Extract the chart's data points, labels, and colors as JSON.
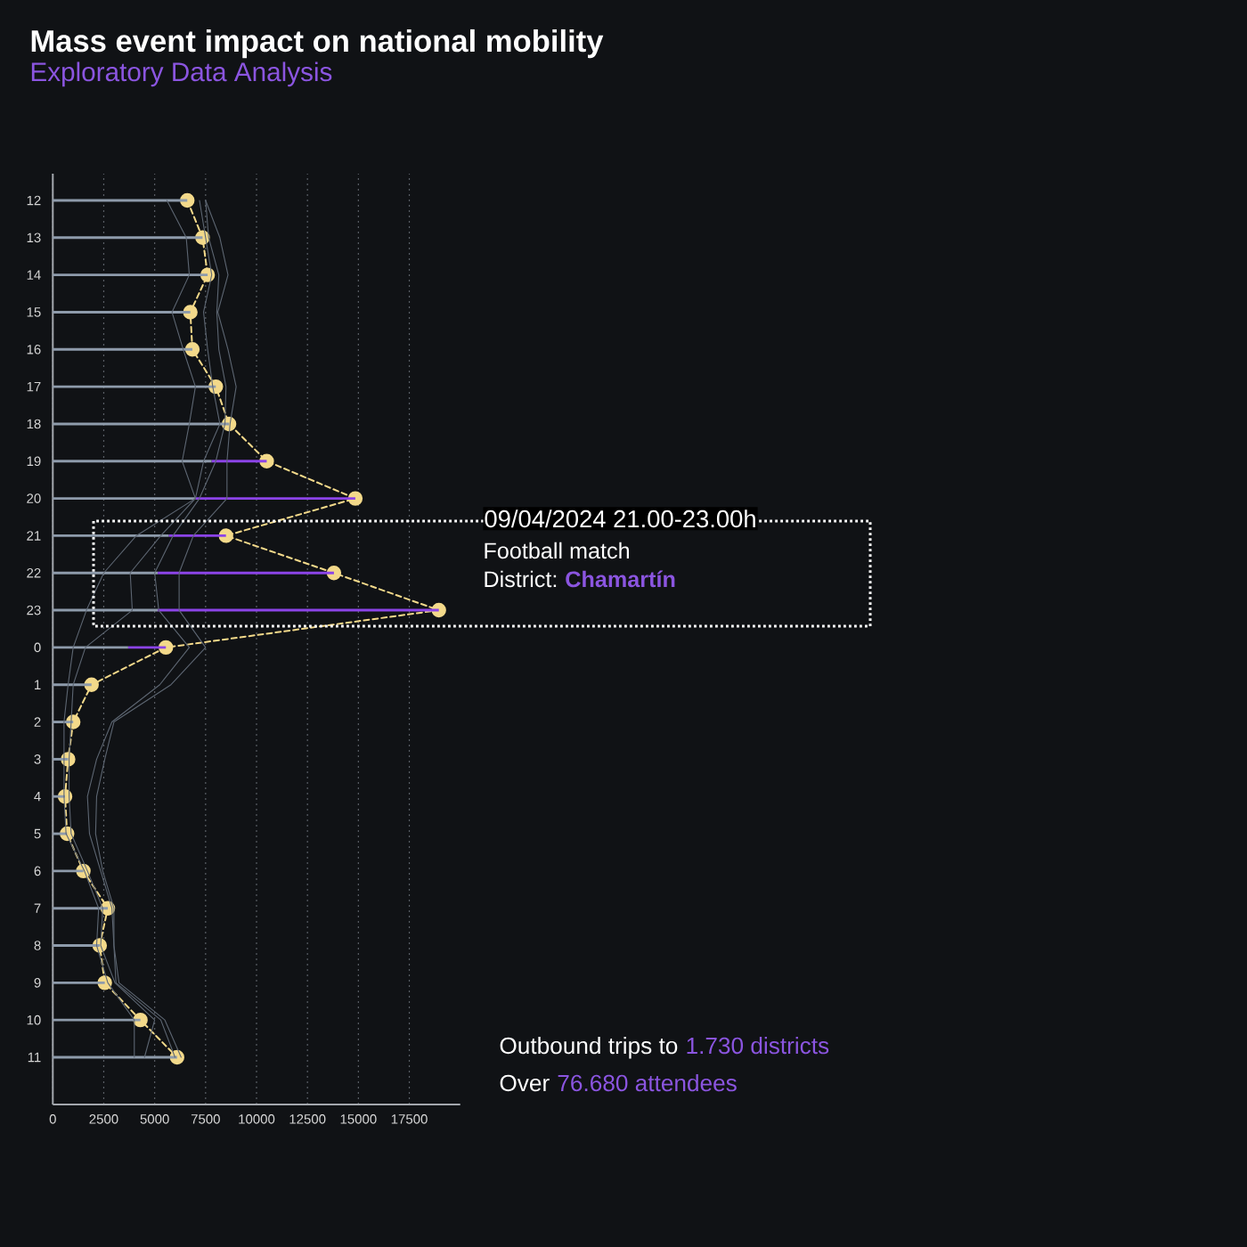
{
  "chart_data": {
    "type": "bar",
    "orientation": "horizontal",
    "stacked": true,
    "title": "Mass event impact on national mobility",
    "subtitle": "Exploratory Data Analysis",
    "categories": [
      "12",
      "13",
      "14",
      "15",
      "16",
      "17",
      "18",
      "19",
      "20",
      "21",
      "22",
      "23",
      "0",
      "1",
      "2",
      "3",
      "4",
      "5",
      "6",
      "7",
      "8",
      "9",
      "10",
      "11"
    ],
    "series": [
      {
        "color": "#8e9bab",
        "values": [
          6600,
          7350,
          7600,
          6750,
          6850,
          8000,
          8650,
          7800,
          7000,
          5700,
          5150,
          5150,
          3700,
          1900,
          1000,
          750,
          600,
          700,
          1500,
          2700,
          2300,
          2550,
          4300,
          6100
        ]
      },
      {
        "color": "#8c44e8",
        "values": [
          null,
          null,
          null,
          null,
          null,
          null,
          null,
          2700,
          7850,
          2800,
          8650,
          13800,
          1850,
          null,
          null,
          null,
          null,
          null,
          null,
          null,
          null,
          null,
          null,
          null
        ]
      },
      {
        "type": "line",
        "color": "#5d6672",
        "values": [
          5600,
          6550,
          6700,
          5850,
          6400,
          7000,
          6700,
          6350,
          7000,
          4100,
          2500,
          1650,
          1000,
          750,
          550,
          550,
          550,
          650,
          1550,
          2250,
          2150,
          2700,
          4000,
          4000
        ]
      },
      {
        "type": "line",
        "color": "#5d6672",
        "values": [
          7200,
          7500,
          7800,
          7400,
          7600,
          7850,
          8200,
          7400,
          7000,
          5300,
          3800,
          3900,
          1600,
          1000,
          900,
          800,
          800,
          900,
          1700,
          2450,
          2350,
          3050,
          5000,
          4500
        ]
      },
      {
        "type": "line",
        "color": "#5d6672",
        "values": [
          7500,
          7650,
          8150,
          8050,
          8150,
          8500,
          8450,
          8000,
          7200,
          5900,
          5000,
          5200,
          6700,
          5250,
          2900,
          2150,
          1700,
          1800,
          2350,
          2900,
          3000,
          3100,
          5300,
          6000
        ]
      },
      {
        "type": "line",
        "color": "#5d6672",
        "values": [
          7500,
          8200,
          8600,
          8100,
          8600,
          9000,
          8700,
          8550,
          8550,
          6900,
          6200,
          6200,
          7500,
          5800,
          3000,
          2550,
          2150,
          2100,
          2450,
          3000,
          3000,
          3250,
          5500,
          6300
        ]
      },
      {
        "type": "line",
        "color": "#f3d98a",
        "marker": "circle",
        "line_style": "dashed",
        "values": [
          6600,
          7350,
          7600,
          6750,
          6850,
          8000,
          8650,
          10500,
          14850,
          8500,
          13800,
          18950,
          5550,
          1900,
          1000,
          750,
          600,
          700,
          1500,
          2700,
          2300,
          2550,
          4300,
          6100
        ]
      }
    ],
    "xlim": [
      0,
      20000
    ],
    "xticks": [
      0,
      2500,
      5000,
      7500,
      10000,
      12500,
      15000,
      17500
    ],
    "grid": "x",
    "annotations": [
      "09/04/2024 21.00-23.00h",
      "Football match",
      "District:",
      "Chamartín",
      "Outbound trips to",
      "1.730 districts",
      "Over",
      "76.680 attendees"
    ]
  }
}
